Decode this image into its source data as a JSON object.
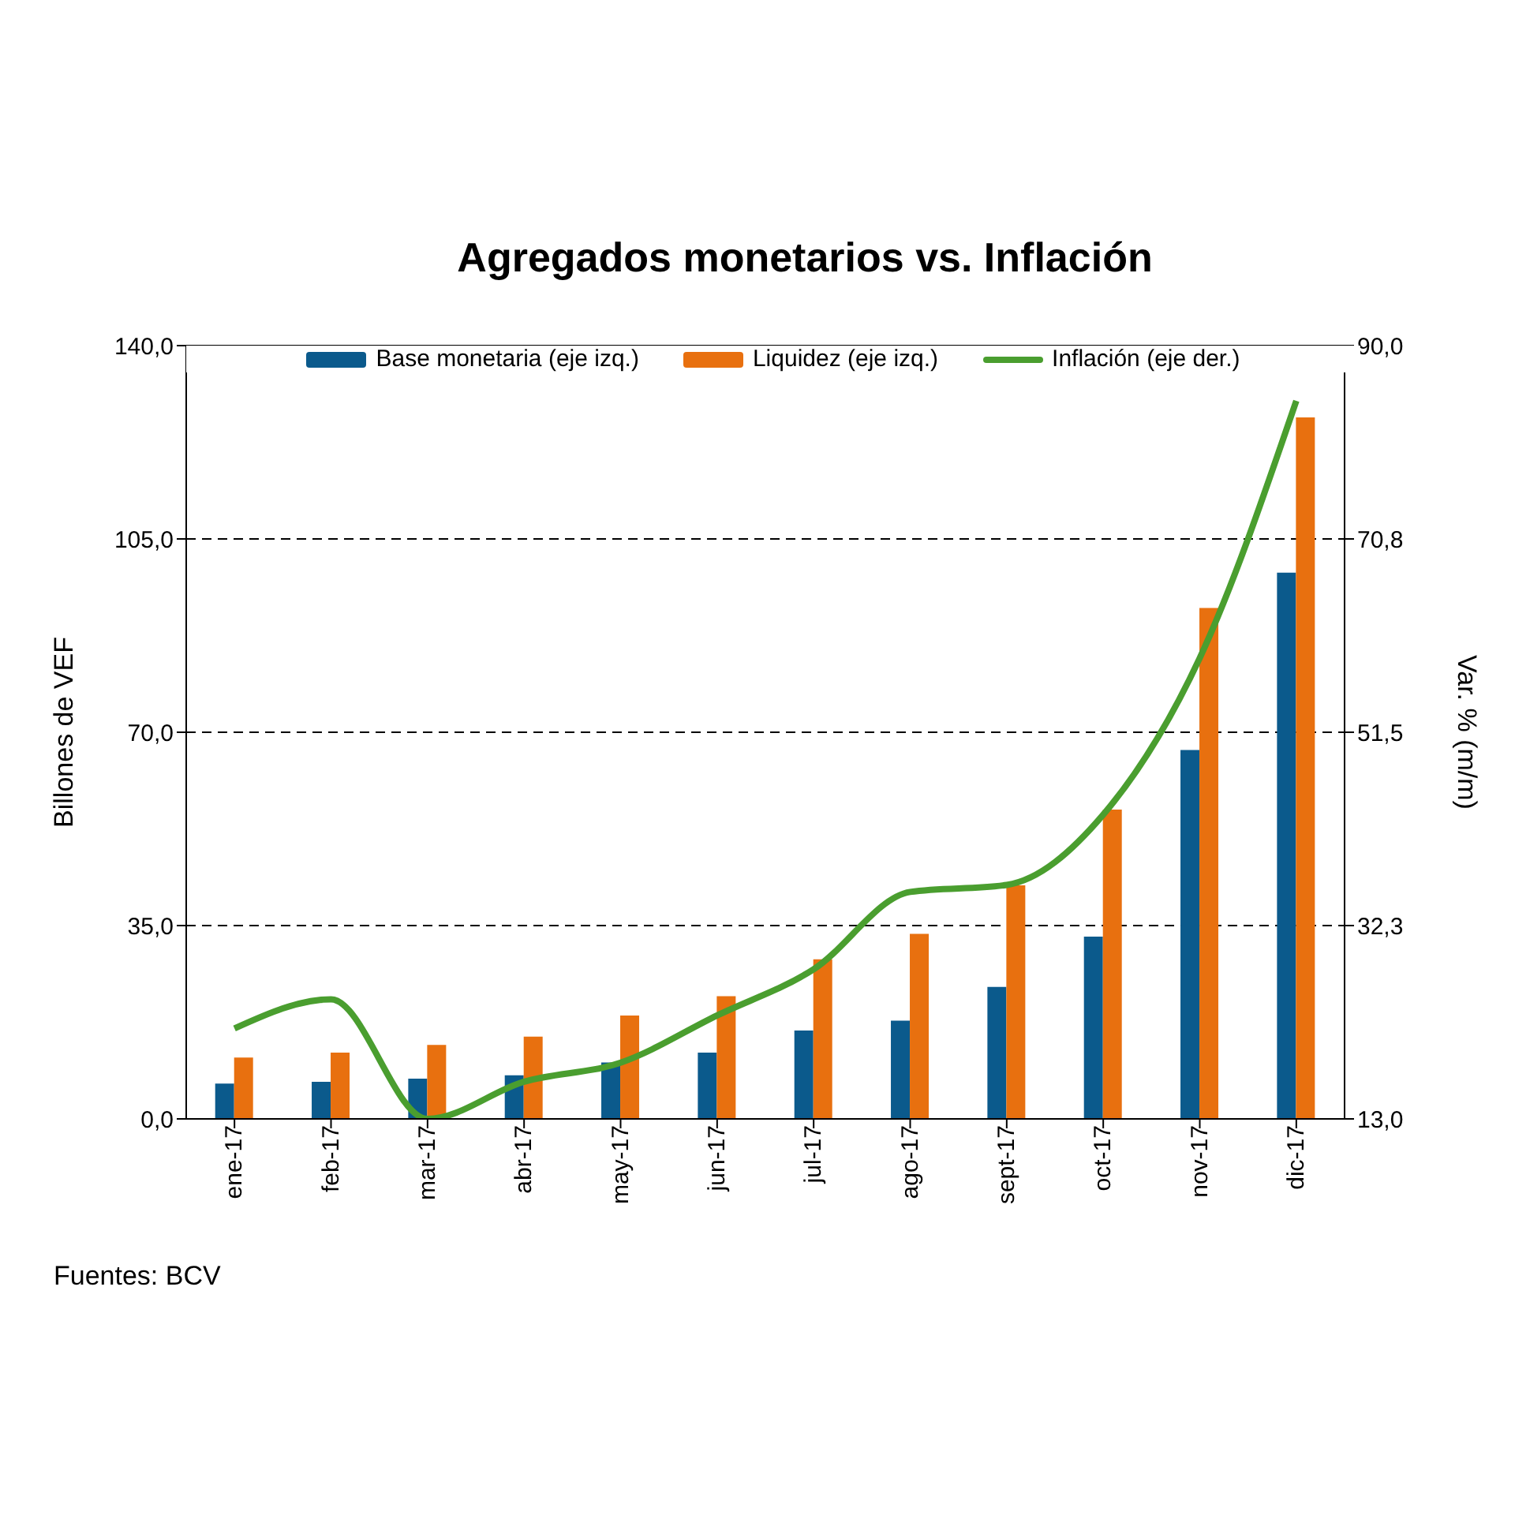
{
  "chart_data": {
    "type": "bar",
    "title": "Agregados monetarios vs. Inflación",
    "ylabel": "Billones de VEF",
    "y2label": "Var. % (m/m)",
    "categories": [
      "ene-17",
      "feb-17",
      "mar-17",
      "abr-17",
      "may-17",
      "jun-17",
      "jul-17",
      "ago-17",
      "sept-17",
      "oct-17",
      "nov-17",
      "dic-17"
    ],
    "series": [
      {
        "name": "Base monetaria (eje izq.)",
        "color": "#0b5a8c",
        "values": [
          6.4,
          6.7,
          7.3,
          7.9,
          10.2,
          12.0,
          16.0,
          17.8,
          23.9,
          33.0,
          66.8,
          98.9
        ]
      },
      {
        "name": "Liquidez (eje izq.)",
        "color": "#e8700f",
        "values": [
          11.1,
          12.0,
          13.4,
          14.9,
          18.7,
          22.2,
          28.9,
          33.5,
          42.3,
          56.0,
          92.5,
          127.0
        ]
      },
      {
        "name": "Inflación (eje der.)",
        "type": "line",
        "axis": "y2",
        "color": "#4a9e2f",
        "line_style": "solid",
        "marker": "none",
        "values": [
          22.0,
          24.9,
          13.0,
          16.7,
          18.6,
          23.3,
          27.9,
          35.6,
          36.3,
          43.3,
          58.9,
          84.5
        ]
      }
    ],
    "ylim": [
      0,
      140
    ],
    "yticks": [
      {
        "value": 0,
        "label": "0,0"
      },
      {
        "value": 35,
        "label": "35,0"
      },
      {
        "value": 70,
        "label": "70,0"
      },
      {
        "value": 105,
        "label": "105,0"
      },
      {
        "value": 140,
        "label": "140,0"
      }
    ],
    "y2lim": [
      13,
      90
    ],
    "y2ticks": [
      {
        "value": 13,
        "label": "13,0"
      },
      {
        "value": 32.25,
        "label": "32,3"
      },
      {
        "value": 51.5,
        "label": "51,5"
      },
      {
        "value": 70.75,
        "label": "70,8"
      },
      {
        "value": 90,
        "label": "90,0"
      }
    ],
    "grid": "y",
    "legend": "top",
    "annotations": [
      "Fuentes: BCV"
    ]
  }
}
